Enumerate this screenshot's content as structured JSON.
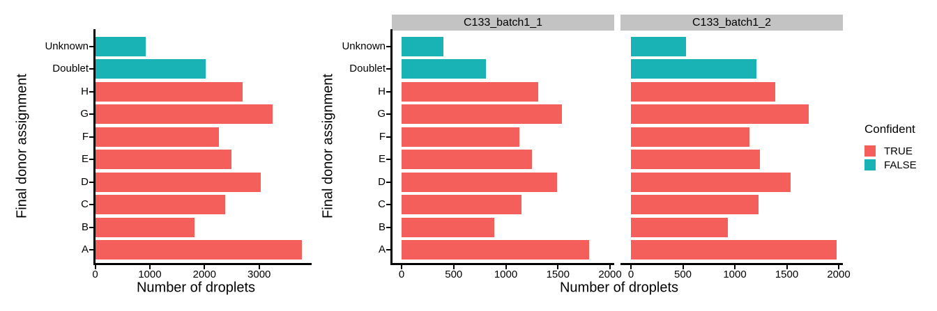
{
  "colors": {
    "TRUE": "#F45F5B",
    "FALSE": "#1AB3B5",
    "strip_bg": "#C3C3C3",
    "axis": "#000000",
    "background": "#FFFFFF"
  },
  "legend": {
    "title": "Confident",
    "items": [
      {
        "label": "TRUE"
      },
      {
        "label": "FALSE"
      }
    ]
  },
  "chart_data": [
    {
      "type": "bar",
      "orientation": "horizontal",
      "title": "",
      "xlabel": "Number of droplets",
      "ylabel": "Final donor assignment",
      "categories_top_to_bottom": [
        "Unknown",
        "Doublet",
        "H",
        "G",
        "F",
        "E",
        "D",
        "C",
        "B",
        "A"
      ],
      "values": [
        930,
        2020,
        2700,
        3250,
        2270,
        2490,
        3030,
        2380,
        1820,
        3780
      ],
      "confident_flags": [
        "FALSE",
        "FALSE",
        "TRUE",
        "TRUE",
        "TRUE",
        "TRUE",
        "TRUE",
        "TRUE",
        "TRUE",
        "TRUE"
      ],
      "x_ticks": [
        0,
        1000,
        2000,
        3000
      ],
      "xlim": [
        0,
        3960
      ],
      "grid": false,
      "legend_position": "none"
    },
    {
      "type": "bar",
      "orientation": "horizontal",
      "title": "",
      "xlabel": "Number of droplets",
      "ylabel": "Final donor assignment",
      "categories_top_to_bottom": [
        "Unknown",
        "Doublet",
        "H",
        "G",
        "F",
        "E",
        "D",
        "C",
        "B",
        "A"
      ],
      "facets": [
        {
          "label": "C133_batch1_1",
          "values": [
            400,
            810,
            1310,
            1540,
            1130,
            1250,
            1490,
            1150,
            890,
            1800
          ]
        },
        {
          "label": "C133_batch1_2",
          "values": [
            530,
            1210,
            1390,
            1710,
            1140,
            1240,
            1540,
            1230,
            930,
            1980
          ]
        }
      ],
      "confident_flags": [
        "FALSE",
        "FALSE",
        "TRUE",
        "TRUE",
        "TRUE",
        "TRUE",
        "TRUE",
        "TRUE",
        "TRUE",
        "TRUE"
      ],
      "x_ticks": [
        0,
        500,
        1000,
        1500,
        2000
      ],
      "xlim": [
        0,
        2040
      ],
      "grid": false,
      "legend_position": "right"
    }
  ]
}
